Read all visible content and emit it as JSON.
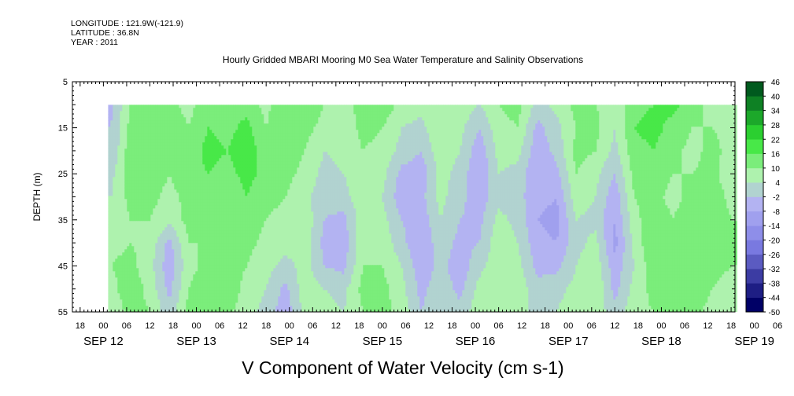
{
  "header": {
    "longitude": "LONGITUDE : 121.9W(-121.9)",
    "latitude": "LATITUDE : 36.8N",
    "year": "YEAR : 2011"
  },
  "colors": {
    "negative_light": "#b3b3f2",
    "negative_mid": "#7f7fe6",
    "negative_dark": "#000066",
    "positive_light": "#aef2ae",
    "positive_mid": "#33e633",
    "positive_dark": "#005a1e"
  },
  "chart_data": {
    "type": "heatmap",
    "title": "Hourly Gridded MBARI Mooring M0 Sea Water Temperature and Salinity Observations",
    "variable_label": "V Component of Water Velocity (cm s-1)",
    "ylabel": "DEPTH (m)",
    "y_axis": {
      "range": [
        5,
        55
      ],
      "inverted": true,
      "ticks": [
        5,
        15,
        25,
        35,
        45,
        55
      ]
    },
    "x_axis": {
      "range_hours": [
        -8,
        163
      ],
      "hour_ticks": [
        "18",
        "00",
        "06",
        "12",
        "18",
        "00",
        "06",
        "12",
        "18",
        "00",
        "06",
        "12",
        "18",
        "00",
        "06",
        "12",
        "18",
        "00",
        "06",
        "12",
        "18",
        "00",
        "06",
        "12",
        "18",
        "00",
        "06",
        "12",
        "18",
        "00",
        "06",
        "12",
        "18"
      ],
      "date_labels": [
        "SEP 12",
        "SEP 13",
        "SEP 14",
        "SEP 15",
        "SEP 16",
        "SEP 17",
        "SEP 18",
        "SEP 19"
      ]
    },
    "data_extent": {
      "depth_range": [
        10,
        55
      ]
    },
    "colorbar": {
      "levels": [
        -50,
        -44,
        -38,
        -32,
        -26,
        -20,
        -14,
        -8,
        -2,
        4,
        10,
        16,
        22,
        28,
        34,
        40,
        46
      ],
      "tick_labels": [
        "46",
        "40",
        "34",
        "28",
        "22",
        "16",
        "10",
        "4",
        "-2",
        "-8",
        "-14",
        "-20",
        "-26",
        "-32",
        "-38",
        "-44",
        "-50"
      ]
    },
    "field": {
      "depths_m": [
        10,
        15,
        20,
        25,
        30,
        35,
        40,
        45,
        50,
        55
      ],
      "hours": [
        2,
        7,
        12,
        17,
        22,
        27,
        32,
        37,
        42,
        47,
        52,
        57,
        62,
        67,
        72,
        77,
        82,
        87,
        92,
        97,
        102,
        107,
        112,
        117,
        122,
        127,
        132,
        137,
        142,
        147,
        152,
        157,
        162
      ],
      "values_cm_s": [
        [
          -3,
          10,
          14,
          12,
          8,
          14,
          12,
          14,
          8,
          16,
          14,
          10,
          8,
          12,
          14,
          8,
          6,
          10,
          8,
          4,
          10,
          12,
          2,
          6,
          12,
          10,
          6,
          14,
          16,
          18,
          12,
          8,
          6
        ],
        [
          -2,
          12,
          16,
          14,
          10,
          16,
          14,
          18,
          10,
          16,
          12,
          8,
          6,
          12,
          10,
          4,
          2,
          10,
          6,
          -2,
          8,
          10,
          -4,
          2,
          10,
          12,
          4,
          16,
          18,
          14,
          10,
          10,
          8
        ],
        [
          -2,
          14,
          16,
          12,
          12,
          18,
          16,
          20,
          12,
          14,
          10,
          4,
          6,
          10,
          8,
          2,
          -2,
          8,
          4,
          -6,
          6,
          6,
          -6,
          0,
          12,
          10,
          2,
          14,
          16,
          12,
          8,
          12,
          8
        ],
        [
          2,
          14,
          14,
          10,
          14,
          16,
          14,
          18,
          14,
          12,
          8,
          2,
          4,
          8,
          6,
          -4,
          -6,
          6,
          2,
          -8,
          4,
          2,
          -8,
          -4,
          10,
          6,
          -2,
          12,
          14,
          10,
          10,
          12,
          6
        ],
        [
          4,
          12,
          12,
          8,
          12,
          14,
          12,
          16,
          12,
          10,
          6,
          0,
          2,
          8,
          4,
          -6,
          -4,
          6,
          0,
          -6,
          2,
          0,
          -6,
          -8,
          8,
          4,
          -6,
          10,
          12,
          8,
          12,
          14,
          8
        ],
        [
          6,
          10,
          10,
          6,
          12,
          12,
          10,
          14,
          10,
          8,
          8,
          -2,
          -4,
          8,
          6,
          -2,
          -6,
          4,
          -2,
          -4,
          6,
          2,
          -8,
          -10,
          4,
          2,
          -8,
          8,
          14,
          10,
          14,
          16,
          10
        ],
        [
          8,
          10,
          8,
          -4,
          10,
          10,
          10,
          12,
          8,
          6,
          8,
          -4,
          -6,
          10,
          8,
          0,
          -8,
          2,
          -4,
          -2,
          8,
          4,
          -6,
          -8,
          2,
          6,
          -10,
          6,
          16,
          12,
          14,
          14,
          12
        ],
        [
          10,
          12,
          6,
          -6,
          8,
          12,
          12,
          10,
          6,
          2,
          6,
          -2,
          -4,
          10,
          10,
          4,
          -6,
          0,
          -6,
          2,
          8,
          6,
          -4,
          -4,
          4,
          8,
          -6,
          4,
          14,
          14,
          12,
          12,
          10
        ],
        [
          8,
          14,
          8,
          -4,
          10,
          14,
          14,
          8,
          4,
          -4,
          8,
          4,
          2,
          12,
          12,
          6,
          -4,
          2,
          -4,
          6,
          10,
          8,
          0,
          2,
          6,
          10,
          -4,
          6,
          12,
          16,
          14,
          10,
          8
        ],
        [
          6,
          12,
          10,
          0,
          12,
          12,
          12,
          6,
          2,
          -6,
          6,
          6,
          4,
          10,
          12,
          8,
          -2,
          4,
          0,
          8,
          8,
          6,
          2,
          4,
          8,
          8,
          0,
          8,
          10,
          14,
          12,
          8,
          6
        ]
      ]
    }
  }
}
